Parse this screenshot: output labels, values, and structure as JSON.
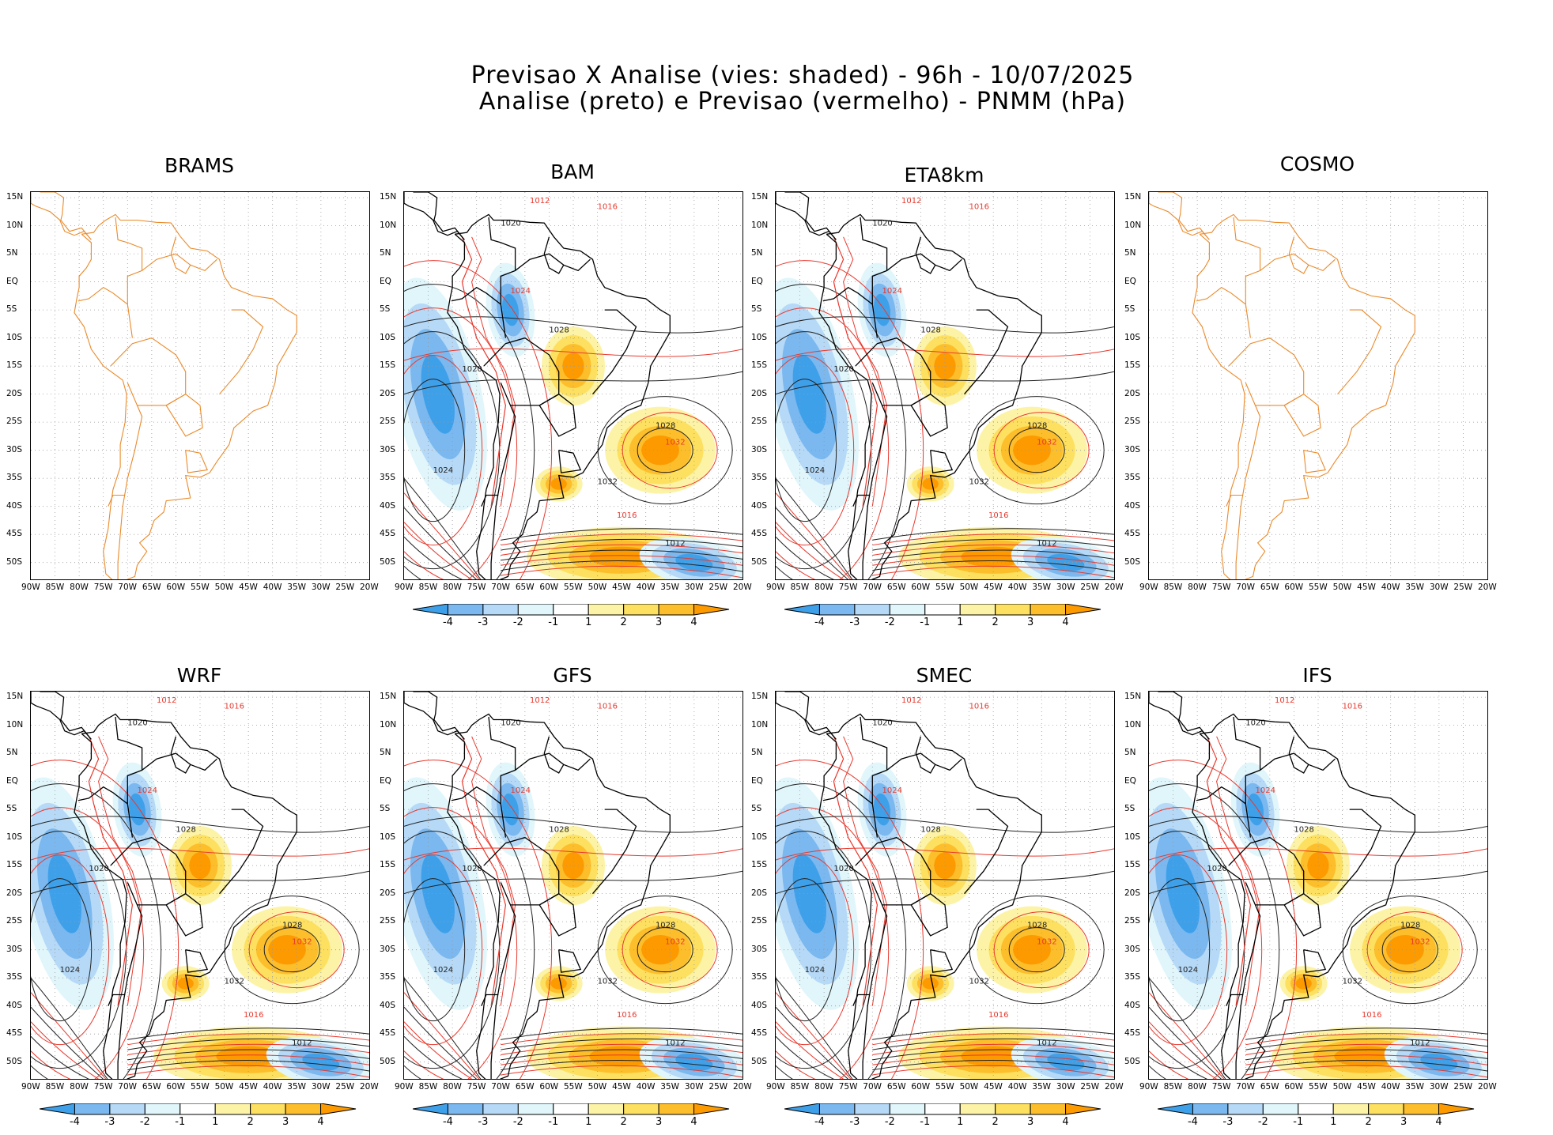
{
  "title": {
    "line1": "Previsao X Analise (vies: shaded) - 96h - 10/07/2025",
    "line2": "Analise (preto) e Previsao (vermelho) - PNMM (hPa)"
  },
  "lat_labels": [
    "15N",
    "10N",
    "5N",
    "EQ",
    "5S",
    "10S",
    "15S",
    "20S",
    "25S",
    "30S",
    "35S",
    "40S",
    "45S",
    "50S"
  ],
  "lon_labels": [
    "90W",
    "85W",
    "80W",
    "75W",
    "70W",
    "65W",
    "60W",
    "55W",
    "50W",
    "45W",
    "40W",
    "35W",
    "30W",
    "25W",
    "20W"
  ],
  "colorbar": {
    "labels": [
      "-4",
      "-3",
      "-2",
      "-1",
      "1",
      "2",
      "3",
      "4"
    ],
    "colors": [
      "#3fa0ea",
      "#7ab8ef",
      "#b5d9f7",
      "#e0f6fb",
      "#ffffff",
      "#fdf3a6",
      "#fde060",
      "#fdbe2c",
      "#fd9a00"
    ]
  },
  "colors": {
    "analysis_contour": "#222222",
    "forecast_contour": "#e8392e",
    "coastline": "#ea8a2a",
    "grid": "#999999"
  },
  "panels": [
    {
      "title": "BRAMS",
      "has_data": false,
      "contour_labels": []
    },
    {
      "title": "BAM",
      "has_data": true,
      "contour_labels": [
        "1012",
        "1016",
        "1020",
        "1024",
        "1028",
        "1032"
      ]
    },
    {
      "title": "ETA8km",
      "has_data": true,
      "contour_labels": [
        "1012",
        "1016",
        "1020",
        "1024",
        "1028",
        "1032"
      ]
    },
    {
      "title": "COSMO",
      "has_data": false,
      "contour_labels": []
    },
    {
      "title": "WRF",
      "has_data": true,
      "contour_labels": [
        "1012",
        "1016",
        "1020",
        "1024",
        "1028",
        "1032"
      ]
    },
    {
      "title": "GFS",
      "has_data": true,
      "contour_labels": [
        "1012",
        "1016",
        "1020",
        "1024",
        "1028",
        "1032"
      ]
    },
    {
      "title": "SMEC",
      "has_data": true,
      "contour_labels": [
        "1012",
        "1016",
        "1020",
        "1024",
        "1028",
        "1032"
      ]
    },
    {
      "title": "IFS",
      "has_data": true,
      "contour_labels": [
        "1012",
        "1016",
        "1020",
        "1024",
        "1028",
        "1032"
      ]
    }
  ]
}
